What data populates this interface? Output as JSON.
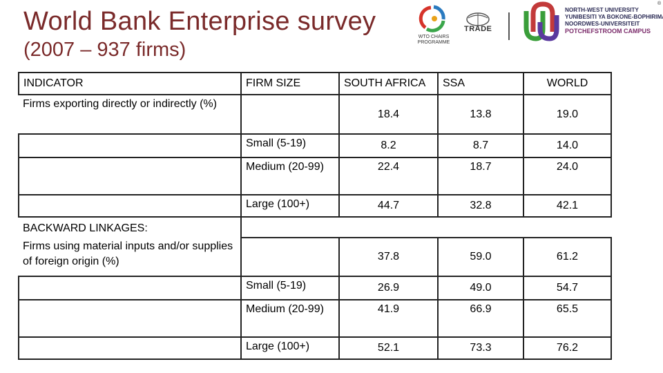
{
  "title": {
    "line1": "World Bank Enterprise survey",
    "line2": "(2007 – 937 firms)"
  },
  "logos": {
    "wto_caption": "WTO CHAIRS PROGRAMME",
    "trade_label": "TRADE",
    "nwu_lines": [
      "NORTH-WEST UNIVERSITY",
      "YUNIBESITI YA BOKONE-BOPHIRIMA",
      "NOORDWES-UNIVERSITEIT"
    ],
    "nwu_campus": "POTCHEFSTROOM CAMPUS",
    "registered": "®"
  },
  "table": {
    "headers": [
      "INDICATOR",
      "FIRM SIZE",
      "SOUTH AFRICA",
      "SSA",
      "WORLD"
    ],
    "rows": [
      {
        "indicator": "Firms exporting directly or indirectly (%)",
        "size": "",
        "sa": "18.4",
        "ssa": "13.8",
        "world": "19.0"
      },
      {
        "indicator": "",
        "size": "Small (5-19)",
        "sa": "8.2",
        "ssa": "8.7",
        "world": "14.0"
      },
      {
        "indicator": "",
        "size": "Medium (20-99)",
        "sa": "22.4",
        "ssa": "18.7",
        "world": "24.0"
      },
      {
        "indicator": "",
        "size": "Large (100+)",
        "sa": "44.7",
        "ssa": "32.8",
        "world": "42.1"
      },
      {
        "indicator": "BACKWARD LINKAGES:",
        "size": "",
        "sa": "",
        "ssa": "",
        "world": ""
      },
      {
        "indicator": "Firms using material inputs and/or supplies of foreign origin (%)",
        "size": "",
        "sa": "37.8",
        "ssa": "59.0",
        "world": "61.2"
      },
      {
        "indicator": "",
        "size": "Small (5-19)",
        "sa": "26.9",
        "ssa": "49.0",
        "world": "54.7"
      },
      {
        "indicator": "",
        "size": "Medium (20-99)",
        "sa": "41.9",
        "ssa": "66.9",
        "world": "65.5"
      },
      {
        "indicator": "",
        "size": "Large (100+)",
        "sa": "52.1",
        "ssa": "73.3",
        "world": "76.2"
      }
    ]
  }
}
